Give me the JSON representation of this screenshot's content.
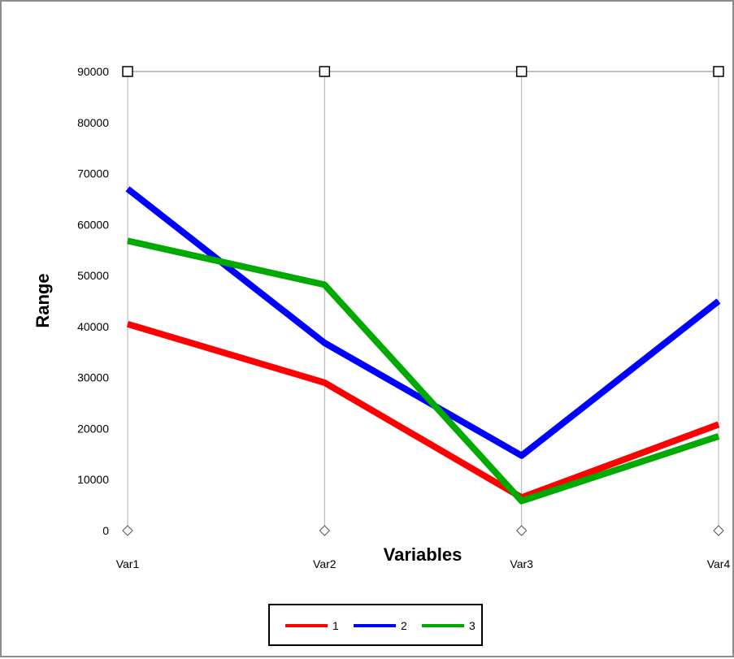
{
  "chart_data": {
    "type": "line",
    "xlabel": "Variables",
    "ylabel": "Range",
    "categories": [
      "Var1",
      "Var2",
      "Var3",
      "Var4"
    ],
    "ylim": [
      0,
      90000
    ],
    "yticks": [
      0,
      10000,
      20000,
      30000,
      40000,
      50000,
      60000,
      70000,
      80000,
      90000
    ],
    "grid": "vertical",
    "legend": "bottom",
    "series": [
      {
        "name": "1",
        "color": "#ff0000",
        "values": [
          40500,
          29000,
          6500,
          20800
        ]
      },
      {
        "name": "2",
        "color": "#0000ff",
        "values": [
          67000,
          36800,
          14700,
          45000
        ]
      },
      {
        "name": "3",
        "color": "#00aa00",
        "values": [
          56800,
          48200,
          5800,
          18500
        ]
      }
    ]
  }
}
